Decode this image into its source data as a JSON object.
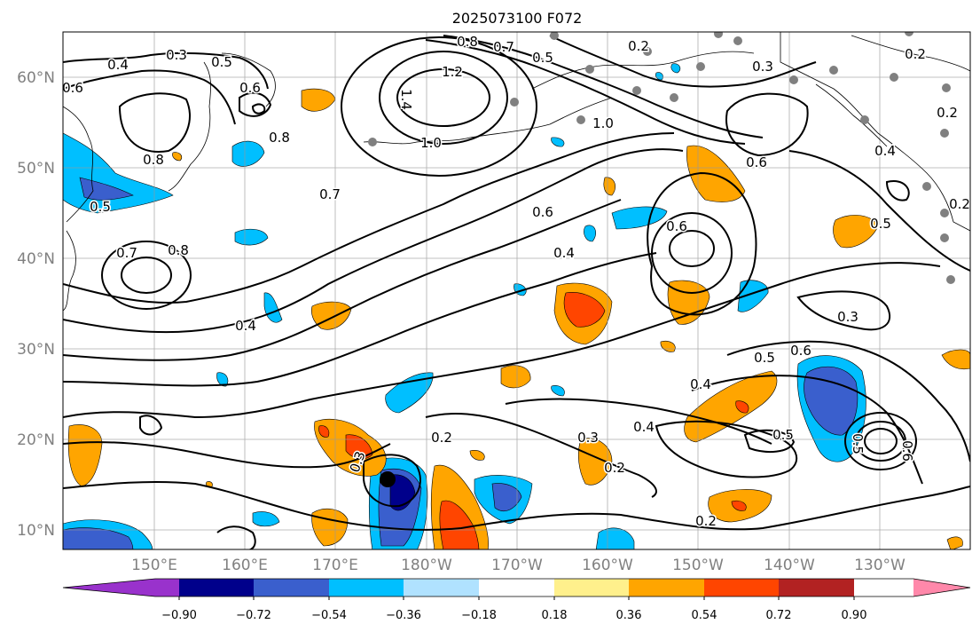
{
  "title": "2025073100 F072",
  "lat_labels": [
    "60°N",
    "50°N",
    "40°N",
    "30°N",
    "20°N",
    "10°N"
  ],
  "lon_labels": [
    "150°E",
    "160°E",
    "170°E",
    "180°W",
    "170°W",
    "160°W",
    "150°W",
    "140°W",
    "130°W"
  ],
  "colorbar": {
    "ticks": [
      "−0.90",
      "−0.72",
      "−0.54",
      "−0.36",
      "−0.18",
      "0.18",
      "0.36",
      "0.54",
      "0.72",
      "0.90"
    ],
    "colors": [
      "#9932cc",
      "#00008b",
      "#3a5fcd",
      "#00bfff",
      "#b0e2ff",
      "#ffffff",
      "#fff08c",
      "#ffa500",
      "#ff4500",
      "#b22222",
      "#ff88aa"
    ]
  },
  "contour_labels": [
    "0.3",
    "0.4",
    "0.5",
    "0.6",
    "0.7",
    "0.8",
    "1.0",
    "1.2",
    "1.4",
    "0.2"
  ],
  "markers": {
    "storm_center": "black dot",
    "stations": "gray dots"
  }
}
